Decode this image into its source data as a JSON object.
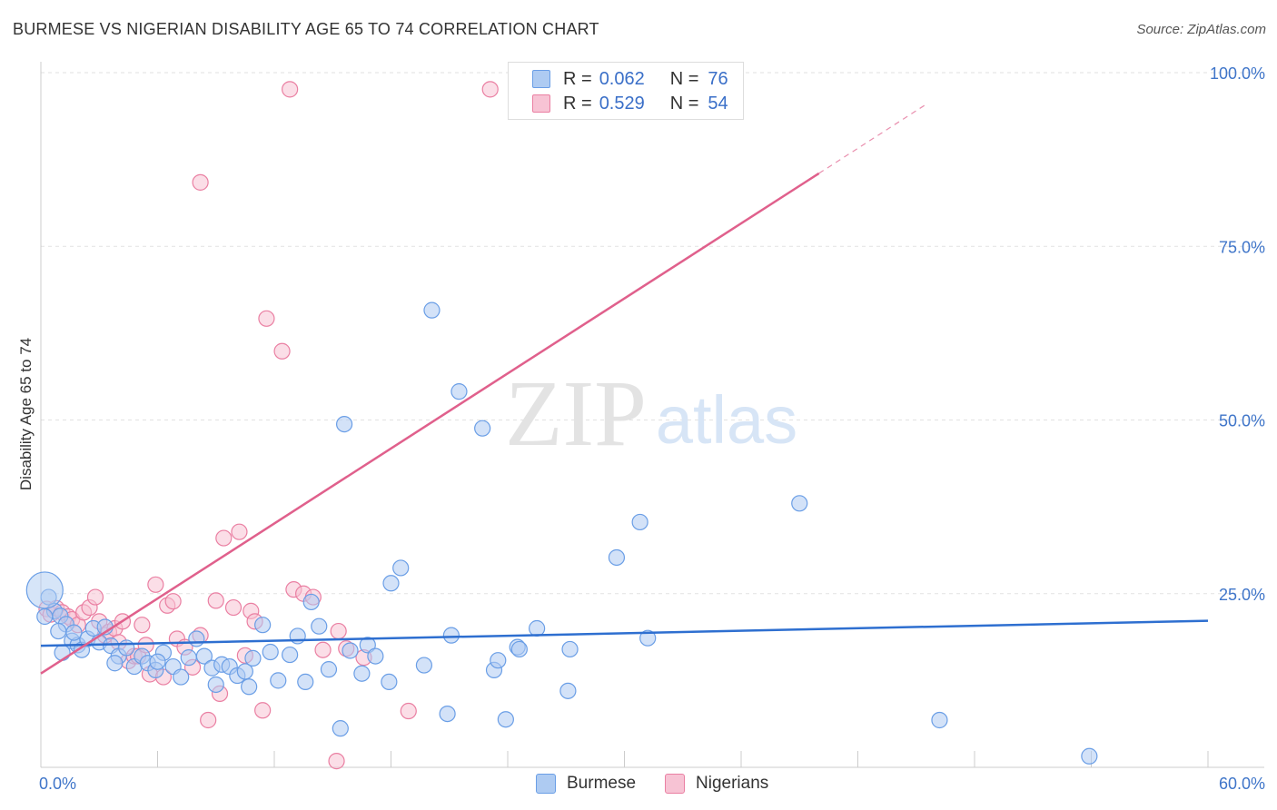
{
  "header": {
    "title": "BURMESE VS NIGERIAN DISABILITY AGE 65 TO 74 CORRELATION CHART",
    "source": "Source: ZipAtlas.com"
  },
  "watermark": {
    "zip": "ZIP",
    "atlas": "atlas"
  },
  "colors": {
    "burmese": "#6a9ee6",
    "burmese_fill": "#aecbf2",
    "burmese_line": "#2e6fd0",
    "nigerians": "#ea7fa2",
    "nigerians_fill": "#f7c3d4",
    "nigerians_line": "#e0608c",
    "tick_label": "#3f75c9"
  },
  "legend": {
    "rows": [
      {
        "series": "Burmese",
        "r_label": "R =",
        "r_value": "0.062",
        "n_label": "N =",
        "n_value": "76"
      },
      {
        "series": "Nigerians",
        "r_label": "R =",
        "r_value": "0.529",
        "n_label": "N =",
        "n_value": "54"
      }
    ]
  },
  "bottom_legend": [
    "Burmese",
    "Nigerians"
  ],
  "chart_data": {
    "type": "scatter",
    "title": "BURMESE VS NIGERIAN DISABILITY AGE 65 TO 74 CORRELATION CHART",
    "xlabel": "",
    "ylabel": "Disability Age 65 to 74",
    "xlim": [
      0,
      60
    ],
    "ylim": [
      0,
      100
    ],
    "x_tick_labels": [
      "0.0%",
      "60.0%"
    ],
    "y_tick_labels": [
      "25.0%",
      "50.0%",
      "75.0%",
      "100.0%"
    ],
    "y_ticks": [
      25,
      50,
      75,
      100
    ],
    "grid": true,
    "legend_position": "top-center",
    "series": [
      {
        "name": "Burmese",
        "r": 0.062,
        "n": 76,
        "trend": {
          "x": [
            0,
            60
          ],
          "y": [
            17.5,
            21.1
          ]
        },
        "points": [
          [
            0.4,
            24.5
          ],
          [
            0.7,
            22.5
          ],
          [
            1.0,
            21.8
          ],
          [
            1.3,
            20.6
          ],
          [
            1.6,
            18.2
          ],
          [
            1.9,
            17.6
          ],
          [
            2.1,
            16.9
          ],
          [
            2.4,
            18.5
          ],
          [
            2.7,
            20.0
          ],
          [
            3.0,
            18.0
          ],
          [
            3.3,
            20.2
          ],
          [
            3.6,
            17.5
          ],
          [
            4.0,
            16.0
          ],
          [
            4.4,
            17.2
          ],
          [
            4.8,
            14.5
          ],
          [
            5.2,
            16.0
          ],
          [
            5.5,
            15.0
          ],
          [
            5.9,
            14.0
          ],
          [
            6.3,
            16.5
          ],
          [
            6.8,
            14.5
          ],
          [
            7.2,
            13.0
          ],
          [
            7.6,
            15.8
          ],
          [
            8.0,
            18.5
          ],
          [
            8.4,
            16.0
          ],
          [
            8.8,
            14.3
          ],
          [
            9.0,
            11.9
          ],
          [
            9.3,
            14.8
          ],
          [
            9.7,
            14.5
          ],
          [
            10.1,
            13.2
          ],
          [
            10.5,
            13.8
          ],
          [
            10.9,
            15.7
          ],
          [
            11.4,
            20.5
          ],
          [
            11.8,
            16.6
          ],
          [
            12.2,
            12.5
          ],
          [
            12.8,
            16.2
          ],
          [
            13.2,
            18.9
          ],
          [
            13.6,
            12.3
          ],
          [
            13.9,
            23.8
          ],
          [
            14.3,
            20.3
          ],
          [
            14.8,
            14.1
          ],
          [
            15.4,
            5.6
          ],
          [
            15.6,
            49.4
          ],
          [
            15.9,
            16.8
          ],
          [
            16.5,
            13.5
          ],
          [
            16.8,
            17.6
          ],
          [
            17.2,
            16.0
          ],
          [
            17.9,
            12.3
          ],
          [
            18.0,
            26.5
          ],
          [
            18.5,
            28.7
          ],
          [
            19.7,
            14.7
          ],
          [
            20.1,
            65.8
          ],
          [
            20.9,
            7.7
          ],
          [
            21.1,
            19.0
          ],
          [
            21.5,
            54.1
          ],
          [
            22.7,
            48.8
          ],
          [
            23.3,
            14.0
          ],
          [
            23.5,
            15.4
          ],
          [
            23.9,
            6.9
          ],
          [
            24.5,
            17.3
          ],
          [
            24.6,
            17.0
          ],
          [
            25.5,
            20.0
          ],
          [
            27.1,
            11.0
          ],
          [
            27.2,
            17.0
          ],
          [
            29.6,
            30.2
          ],
          [
            30.8,
            35.3
          ],
          [
            31.2,
            18.6
          ],
          [
            39.0,
            38.0
          ],
          [
            46.2,
            6.8
          ],
          [
            53.9,
            1.6
          ],
          [
            0.2,
            21.7
          ],
          [
            1.1,
            16.5
          ],
          [
            0.9,
            19.6
          ],
          [
            1.7,
            19.4
          ],
          [
            3.8,
            15.0
          ],
          [
            6.0,
            15.2
          ],
          [
            10.7,
            11.6
          ]
        ]
      },
      {
        "name": "Nigerians",
        "r": 0.529,
        "n": 54,
        "trend": {
          "x": [
            0,
            40
          ],
          "y": [
            13.5,
            85.5
          ]
        },
        "trend_dashed": {
          "x": [
            40,
            45.6
          ],
          "y": [
            85.5,
            95.6
          ]
        },
        "points": [
          [
            0.3,
            22.8
          ],
          [
            0.5,
            22.0
          ],
          [
            0.8,
            22.9
          ],
          [
            1.1,
            22.3
          ],
          [
            1.4,
            21.7
          ],
          [
            1.6,
            21.3
          ],
          [
            1.9,
            20.5
          ],
          [
            2.2,
            22.3
          ],
          [
            2.5,
            23.0
          ],
          [
            2.8,
            24.5
          ],
          [
            3.0,
            21.0
          ],
          [
            3.3,
            19.0
          ],
          [
            3.5,
            19.5
          ],
          [
            3.8,
            20.0
          ],
          [
            4.0,
            18.0
          ],
          [
            4.2,
            21.0
          ],
          [
            4.5,
            15.3
          ],
          [
            4.8,
            16.0
          ],
          [
            5.0,
            16.0
          ],
          [
            5.2,
            20.5
          ],
          [
            5.4,
            17.6
          ],
          [
            5.6,
            13.4
          ],
          [
            5.9,
            26.3
          ],
          [
            6.3,
            13.0
          ],
          [
            6.5,
            23.3
          ],
          [
            6.8,
            23.9
          ],
          [
            7.0,
            18.5
          ],
          [
            7.4,
            17.3
          ],
          [
            7.8,
            14.4
          ],
          [
            8.2,
            19.0
          ],
          [
            8.6,
            6.8
          ],
          [
            9.0,
            24.0
          ],
          [
            9.2,
            10.6
          ],
          [
            9.4,
            33.0
          ],
          [
            9.9,
            23.0
          ],
          [
            10.2,
            33.9
          ],
          [
            10.5,
            16.1
          ],
          [
            10.8,
            22.5
          ],
          [
            11.0,
            21.0
          ],
          [
            11.4,
            8.2
          ],
          [
            11.6,
            64.6
          ],
          [
            12.4,
            59.9
          ],
          [
            13.0,
            25.6
          ],
          [
            13.5,
            25.0
          ],
          [
            14.0,
            24.5
          ],
          [
            14.5,
            16.9
          ],
          [
            15.2,
            0.9
          ],
          [
            15.3,
            19.6
          ],
          [
            15.7,
            17.1
          ],
          [
            16.6,
            15.8
          ],
          [
            18.9,
            8.1
          ],
          [
            8.2,
            84.2
          ],
          [
            12.8,
            97.6
          ],
          [
            23.1,
            97.6
          ]
        ]
      }
    ]
  }
}
